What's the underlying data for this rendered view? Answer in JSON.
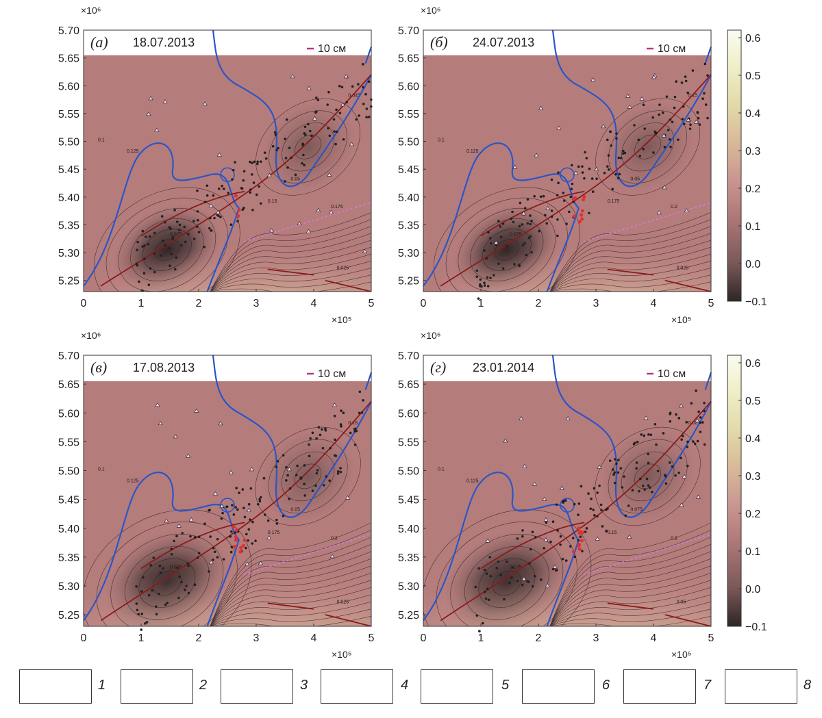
{
  "chart_data": [
    {
      "type": "heatmap",
      "panel_label": "(а)",
      "date": "18.07.2013",
      "scale_label": "10 см",
      "x_multiplier": "×10⁵",
      "y_multiplier": "×10⁶",
      "x_ticks": [
        "0",
        "1",
        "2",
        "3",
        "4",
        "5"
      ],
      "y_ticks": [
        "5.25",
        "5.30",
        "5.35",
        "5.40",
        "5.45",
        "5.50",
        "5.55",
        "5.60",
        "5.65",
        "5.70"
      ],
      "xlim": [
        0,
        5
      ],
      "ylim": [
        5.23,
        5.7
      ],
      "contour_labels": [
        "0.1",
        "0.125",
        "0.075",
        "0.05",
        "0.025",
        "0.045",
        "0.15",
        "0.175",
        "0.2",
        "0.225",
        "0.25",
        "0.275",
        "0.3"
      ],
      "value_range": [
        -0.1,
        0.6
      ]
    },
    {
      "type": "heatmap",
      "panel_label": "(б)",
      "date": "24.07.2013",
      "scale_label": "10 см",
      "x_multiplier": "×10⁵",
      "y_multiplier": "×10⁶",
      "x_ticks": [
        "0",
        "1",
        "2",
        "3",
        "4",
        "5"
      ],
      "y_ticks": [
        "5.25",
        "5.30",
        "5.35",
        "5.40",
        "5.45",
        "5.50",
        "5.55",
        "5.60",
        "5.65",
        "5.70"
      ],
      "xlim": [
        0,
        5
      ],
      "ylim": [
        5.23,
        5.7
      ],
      "contour_labels": [
        "0.1",
        "0.125",
        "0.075",
        "0.05",
        "0.025",
        "0.15",
        "0.175",
        "0.2",
        "0.225",
        "0.25",
        "0.275",
        "0.3"
      ],
      "value_range": [
        -0.1,
        0.6
      ]
    },
    {
      "type": "heatmap",
      "panel_label": "(в)",
      "date": "17.08.2013",
      "scale_label": "10 см",
      "x_multiplier": "×10⁵",
      "y_multiplier": "×10⁶",
      "x_ticks": [
        "0",
        "1",
        "2",
        "3",
        "4",
        "5"
      ],
      "y_ticks": [
        "5.25",
        "5.30",
        "5.35",
        "5.40",
        "5.45",
        "5.50",
        "5.55",
        "5.60",
        "5.65",
        "5.70"
      ],
      "xlim": [
        0,
        5
      ],
      "ylim": [
        5.23,
        5.7
      ],
      "contour_labels": [
        "0.1",
        "0.125",
        "0.075",
        "0.05",
        "0.025",
        "0.15",
        "0.175",
        "0.2",
        "0.225",
        "0.25",
        "0.275",
        "0.3",
        "0.325",
        "0.375"
      ],
      "value_range": [
        -0.1,
        0.6
      ]
    },
    {
      "type": "heatmap",
      "panel_label": "(г)",
      "date": "23.01.2014",
      "scale_label": "10 см",
      "x_multiplier": "×10⁵",
      "y_multiplier": "×10⁶",
      "x_ticks": [
        "0",
        "1",
        "2",
        "3",
        "4",
        "5"
      ],
      "y_ticks": [
        "5.25",
        "5.30",
        "5.35",
        "5.40",
        "5.45",
        "5.50",
        "5.55",
        "5.60",
        "5.65",
        "5.70"
      ],
      "xlim": [
        0,
        5
      ],
      "ylim": [
        5.23,
        5.7
      ],
      "contour_labels": [
        "0.1",
        "0.125",
        "0.175",
        "0.075",
        "0.05",
        "0.025",
        "0.15",
        "0.2",
        "0.225",
        "0.25",
        "0.275",
        "0.3",
        "0.325",
        "0.375",
        "0.4"
      ],
      "value_range": [
        -0.1,
        0.6
      ]
    }
  ],
  "colorbar": {
    "ticks": [
      "0.6",
      "0.5",
      "0.4",
      "0.3",
      "0.2",
      "0.1",
      "0.0",
      "−0.1"
    ],
    "values": [
      0.6,
      0.5,
      0.4,
      0.3,
      0.2,
      0.1,
      0.0,
      -0.1
    ],
    "colors": [
      "#fbfbf2",
      "#eeeec6",
      "#e2d9a8",
      "#d8b898",
      "#c99490",
      "#ac7676",
      "#7a5858",
      "#3a3030"
    ]
  },
  "legend": {
    "items": [
      {
        "number": "1",
        "symbol": "large-red-star-icon"
      },
      {
        "number": "2",
        "symbol": "small-red-star-icon"
      },
      {
        "number": "3",
        "symbol": "red-dot-icon"
      },
      {
        "number": "4",
        "symbol": "black-dot-icon"
      },
      {
        "number": "5",
        "symbol": "dark-red-curve-icon"
      },
      {
        "number": "6",
        "symbol": "pink-dotted-line-icon"
      },
      {
        "number": "7",
        "symbol": "blue-coastline-icon"
      },
      {
        "number": "8",
        "symbol": "black-triangle-icon"
      }
    ]
  },
  "colors": {
    "coastline": "#2a55c8",
    "fault": "#8b1a1a",
    "dotted": "#d07ad0",
    "epicenter": "#e03030",
    "station": "#222222"
  }
}
